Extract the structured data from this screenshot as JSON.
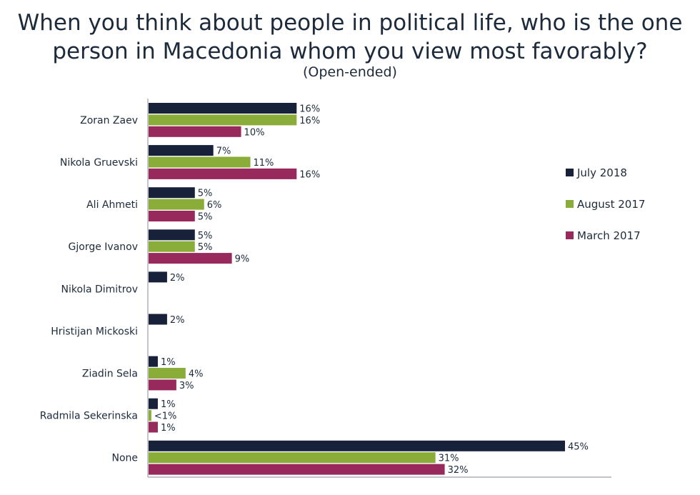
{
  "title_line1": "When you think about people in political life, who is the one",
  "title_line2": "person in Macedonia whom you view most favorably?",
  "subtitle": "(Open-ended)",
  "chart_data": {
    "type": "bar",
    "orientation": "horizontal",
    "title": "When you think about people in political life, who is the one person in Macedonia whom you view most favorably?",
    "subtitle": "(Open-ended)",
    "categories": [
      "Zoran Zaev",
      "Nikola Gruevski",
      "Ali Ahmeti",
      "Gjorge Ivanov",
      "Nikola Dimitrov",
      "Hristijan Mickoski",
      "Ziadin Sela",
      "Radmila Sekerinska",
      "None"
    ],
    "series": [
      {
        "name": "July 2018",
        "color": "#17213a",
        "values": [
          16,
          7,
          5,
          5,
          2,
          2,
          1,
          1,
          45
        ],
        "labels": [
          "16%",
          "7%",
          "5%",
          "5%",
          "2%",
          "2%",
          "1%",
          "1%",
          "45%"
        ]
      },
      {
        "name": "August 2017",
        "color": "#8aac38",
        "values": [
          16,
          11,
          6,
          5,
          null,
          null,
          4,
          0.3,
          31
        ],
        "labels": [
          "16%",
          "11%",
          "6%",
          "5%",
          null,
          null,
          "4%",
          "<1%",
          "31%"
        ]
      },
      {
        "name": "March 2017",
        "color": "#97295c",
        "values": [
          10,
          16,
          5,
          9,
          null,
          null,
          3,
          1,
          32
        ],
        "labels": [
          "10%",
          "16%",
          "5%",
          "9%",
          null,
          null,
          "3%",
          "1%",
          "32%"
        ]
      }
    ],
    "xlim": [
      0,
      50
    ],
    "legend_position": "right"
  }
}
